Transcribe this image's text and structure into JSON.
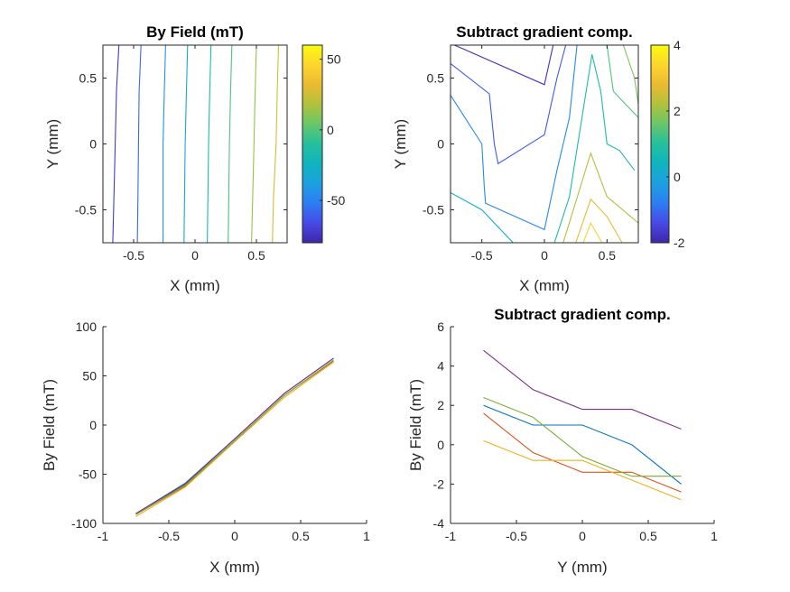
{
  "figure": {
    "background": "#ffffff"
  },
  "chart_data": [
    {
      "type": "contour",
      "title": "By Field (mT)",
      "xlabel": "X (mm)",
      "ylabel": "Y (mm)",
      "xlim": [
        -0.75,
        0.75
      ],
      "ylim": [
        -0.75,
        0.75
      ],
      "xticks": [
        -0.5,
        0,
        0.5
      ],
      "xtick_labels": [
        "-0.5",
        "0",
        "0.5"
      ],
      "yticks": [
        -0.5,
        0,
        0.5
      ],
      "ytick_labels": [
        "-0.5",
        "0",
        "0.5"
      ],
      "grid": false,
      "colormap": "parula",
      "colorbar": {
        "limits": [
          -80,
          60
        ],
        "ticks": [
          -50,
          0,
          50
        ],
        "tick_labels": [
          "-50",
          "0",
          "50"
        ]
      },
      "contours": [
        {
          "level": -72,
          "points": [
            [
              -0.67,
              -0.75
            ],
            [
              -0.66,
              -0.4
            ],
            [
              -0.65,
              0
            ],
            [
              -0.64,
              0.4
            ],
            [
              -0.62,
              0.75
            ]
          ]
        },
        {
          "level": -58,
          "points": [
            [
              -0.47,
              -0.75
            ],
            [
              -0.465,
              -0.4
            ],
            [
              -0.46,
              0
            ],
            [
              -0.455,
              0.4
            ],
            [
              -0.44,
              0.75
            ]
          ]
        },
        {
          "level": -44,
          "points": [
            [
              -0.26,
              -0.75
            ],
            [
              -0.26,
              -0.4
            ],
            [
              -0.26,
              0
            ],
            [
              -0.25,
              0.4
            ],
            [
              -0.24,
              0.75
            ]
          ]
        },
        {
          "level": -30,
          "points": [
            [
              -0.09,
              -0.75
            ],
            [
              -0.085,
              -0.4
            ],
            [
              -0.08,
              0
            ],
            [
              -0.07,
              0.4
            ],
            [
              -0.06,
              0.75
            ]
          ]
        },
        {
          "level": -16,
          "points": [
            [
              0.1,
              -0.75
            ],
            [
              0.105,
              -0.4
            ],
            [
              0.11,
              0
            ],
            [
              0.12,
              0.4
            ],
            [
              0.13,
              0.75
            ]
          ]
        },
        {
          "level": -2,
          "points": [
            [
              0.27,
              -0.75
            ],
            [
              0.275,
              -0.4
            ],
            [
              0.28,
              0
            ],
            [
              0.29,
              0.4
            ],
            [
              0.3,
              0.75
            ]
          ]
        },
        {
          "level": 12,
          "points": [
            [
              0.46,
              -0.75
            ],
            [
              0.47,
              -0.4
            ],
            [
              0.48,
              0
            ],
            [
              0.49,
              0.4
            ],
            [
              0.5,
              0.75
            ]
          ]
        },
        {
          "level": 26,
          "points": [
            [
              0.63,
              -0.75
            ],
            [
              0.64,
              -0.4
            ],
            [
              0.66,
              0
            ],
            [
              0.67,
              0.4
            ],
            [
              0.68,
              0.75
            ]
          ]
        }
      ]
    },
    {
      "type": "contour",
      "title": "Subtract gradient comp.",
      "xlabel": "X (mm)",
      "ylabel": "Y (mm)",
      "xlim": [
        -0.75,
        0.75
      ],
      "ylim": [
        -0.75,
        0.75
      ],
      "xticks": [
        -0.5,
        0,
        0.5
      ],
      "xtick_labels": [
        "-0.5",
        "0",
        "0.5"
      ],
      "yticks": [
        -0.5,
        0,
        0.5
      ],
      "ytick_labels": [
        "-0.5",
        "0",
        "0.5"
      ],
      "grid": false,
      "colormap": "parula",
      "colorbar": {
        "limits": [
          -2,
          4
        ],
        "ticks": [
          -2,
          0,
          2,
          4
        ],
        "tick_labels": [
          "-2",
          "0",
          "2",
          "4"
        ]
      },
      "contours": [
        {
          "level": -1.8,
          "points": [
            [
              -0.72,
              0.75
            ],
            [
              -0.67,
              0.73
            ],
            [
              0,
              0.45
            ],
            [
              0.07,
              0.75
            ]
          ]
        },
        {
          "level": -1.2,
          "points": [
            [
              -0.75,
              0.61
            ],
            [
              -0.44,
              0.38
            ],
            [
              -0.4,
              0
            ],
            [
              -0.37,
              -0.15
            ],
            [
              0,
              0.07
            ],
            [
              0.1,
              0.5
            ],
            [
              0.17,
              0.75
            ]
          ]
        },
        {
          "level": -0.6,
          "points": [
            [
              -0.75,
              0.37
            ],
            [
              -0.5,
              0
            ],
            [
              -0.48,
              -0.33
            ],
            [
              -0.47,
              -0.45
            ],
            [
              0,
              -0.65
            ],
            [
              0.1,
              -0.2
            ],
            [
              0.2,
              0.2
            ],
            [
              0.26,
              0.75
            ]
          ]
        },
        {
          "level": 0.0,
          "points": [
            [
              -0.75,
              0.05
            ],
            [
              -0.75,
              -0.75
            ]
          ]
        },
        {
          "level": 0.3,
          "points": [
            [
              -0.75,
              -0.37
            ],
            [
              -0.5,
              -0.5
            ],
            [
              -0.25,
              -0.75
            ]
          ]
        },
        {
          "level": 0.8,
          "points": [
            [
              0.08,
              -0.75
            ],
            [
              0.2,
              -0.4
            ],
            [
              0.38,
              0.68
            ],
            [
              0.45,
              0.4
            ],
            [
              0.5,
              0
            ],
            [
              0.6,
              -0.05
            ],
            [
              0.72,
              -0.2
            ]
          ]
        },
        {
          "level": 1.4,
          "points": [
            [
              0.5,
              0.75
            ],
            [
              0.55,
              0.4
            ],
            [
              0.75,
              0.2
            ]
          ]
        },
        {
          "level": 1.8,
          "points": [
            [
              0.63,
              0.75
            ],
            [
              0.72,
              0.5
            ],
            [
              0.75,
              0.3
            ]
          ]
        },
        {
          "level": 2.2,
          "points": [
            [
              0.15,
              -0.75
            ],
            [
              0.37,
              -0.07
            ],
            [
              0.5,
              -0.4
            ],
            [
              0.75,
              -0.6
            ]
          ]
        },
        {
          "level": 2.8,
          "points": [
            [
              0.25,
              -0.75
            ],
            [
              0.37,
              -0.42
            ],
            [
              0.5,
              -0.55
            ],
            [
              0.62,
              -0.75
            ]
          ]
        },
        {
          "level": 3.3,
          "points": [
            [
              0.31,
              -0.75
            ],
            [
              0.37,
              -0.6
            ],
            [
              0.46,
              -0.75
            ]
          ]
        }
      ]
    },
    {
      "type": "line",
      "title": "",
      "xlabel": "X (mm)",
      "ylabel": "By Field (mT)",
      "xlim": [
        -1,
        1
      ],
      "ylim": [
        -100,
        100
      ],
      "xticks": [
        -1,
        -0.5,
        0,
        0.5,
        1
      ],
      "xtick_labels": [
        "-1",
        "-0.5",
        "0",
        "0.5",
        "1"
      ],
      "yticks": [
        -100,
        -50,
        0,
        50,
        100
      ],
      "ytick_labels": [
        "-100",
        "-50",
        "0",
        "50",
        "100"
      ],
      "grid": false,
      "x": [
        -0.75,
        -0.375,
        0,
        0.375,
        0.75
      ],
      "series": [
        {
          "color": "#0072BD",
          "values": [
            -90,
            -59,
            -14,
            32,
            68
          ]
        },
        {
          "color": "#D95319",
          "values": [
            -91,
            -62,
            -16,
            30,
            65
          ]
        },
        {
          "color": "#EDB120",
          "values": [
            -93,
            -63,
            -17,
            28,
            64
          ]
        },
        {
          "color": "#7E2F8E",
          "values": [
            -90,
            -60,
            -14,
            32,
            68
          ]
        },
        {
          "color": "#77AC30",
          "values": [
            -91,
            -61,
            -16,
            30,
            66
          ]
        }
      ]
    },
    {
      "type": "line",
      "title": "Subtract gradient comp.",
      "xlabel": "Y (mm)",
      "ylabel": "By Field (mT)",
      "xlim": [
        -1,
        1
      ],
      "ylim": [
        -4,
        6
      ],
      "xticks": [
        -1,
        -0.5,
        0,
        0.5,
        1
      ],
      "xtick_labels": [
        "-1",
        "-0.5",
        "0",
        "0.5",
        "1"
      ],
      "yticks": [
        -4,
        -2,
        0,
        2,
        4,
        6
      ],
      "ytick_labels": [
        "-4",
        "-2",
        "0",
        "2",
        "4",
        "6"
      ],
      "grid": false,
      "x": [
        -0.75,
        -0.375,
        0,
        0.375,
        0.75
      ],
      "series": [
        {
          "color": "#0072BD",
          "values": [
            2.0,
            1.0,
            1.0,
            0.0,
            -2.0
          ]
        },
        {
          "color": "#D95319",
          "values": [
            1.6,
            -0.4,
            -1.4,
            -1.4,
            -2.4
          ]
        },
        {
          "color": "#EDB120",
          "values": [
            0.2,
            -0.8,
            -0.8,
            -1.8,
            -2.8
          ]
        },
        {
          "color": "#7E2F8E",
          "values": [
            4.8,
            2.8,
            1.8,
            1.8,
            0.8
          ]
        },
        {
          "color": "#77AC30",
          "values": [
            2.4,
            1.4,
            -0.6,
            -1.6,
            -1.6
          ]
        }
      ]
    }
  ]
}
